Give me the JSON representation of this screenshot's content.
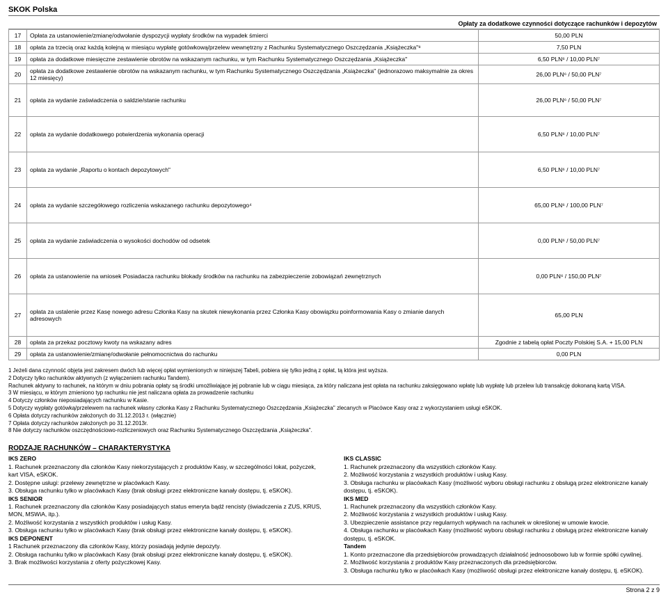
{
  "header": {
    "brand": "SKOK Polska"
  },
  "fees_section": {
    "title": "Opłaty za dodatkowe czynności dotyczące rachunków i depozytów",
    "rows": [
      {
        "num": "17",
        "desc": "Opłata za ustanowienie/zmianę/odwołanie dyspozycji wypłaty środków na wypadek śmierci",
        "val": "50,00 PLN"
      },
      {
        "num": "18",
        "desc": "opłata za trzecią oraz każdą kolejną w miesiącu wypłatę gotówkową/przelew wewnętrzny z Rachunku Systematycznego Oszczędzania „Książeczka\"⁸",
        "val": "7,50 PLN"
      },
      {
        "num": "19",
        "desc": "opłata za dodatkowe miesięczne zestawienie obrotów na wskazanym rachunku, w tym Rachunku Systematycznego Oszczędzania „Książeczka\"",
        "val": "6,50 PLN⁶ / 10,00 PLN⁷"
      },
      {
        "num": "20",
        "desc": "opłata za dodatkowe zestawienie obrotów na wskazanym rachunku, w tym Rachunku Systematycznego Oszczędzania „Książeczka\" (jednorazowo maksymalnie za okres 12 miesięcy)",
        "val": "26,00 PLN⁶ / 50,00 PLN⁷"
      },
      {
        "num": "21",
        "desc": "opłata za wydanie zaświadczenia o saldzie/stanie rachunku",
        "val": "26,00 PLN⁶ / 50,00 PLN⁷"
      },
      {
        "num": "22",
        "desc": "opłata za wydanie dodatkowego potwierdzenia wykonania operacji",
        "val": "6,50 PLN⁶ / 10,00 PLN⁷"
      },
      {
        "num": "23",
        "desc": "opłata za wydanie „Raportu o kontach depozytowych\"",
        "val": "6,50 PLN⁶ / 10,00 PLN⁷"
      },
      {
        "num": "24",
        "desc": "opłata za wydanie szczegółowego rozliczenia wskazanego rachunku depozytowego⁴",
        "val": "65,00 PLN⁶ / 100,00 PLN⁷"
      },
      {
        "num": "25",
        "desc": "opłata za wydanie zaświadczenia o wysokości dochodów od odsetek",
        "val": "0,00 PLN⁶ / 50,00 PLN⁷"
      },
      {
        "num": "26",
        "desc": "opłata za ustanowienie na wniosek Posiadacza rachunku blokady środków na rachunku na zabezpieczenie zobowiązań zewnętrznych",
        "val": "0,00 PLN⁶ / 150,00 PLN⁷"
      },
      {
        "num": "27",
        "desc": "opłata za ustalenie przez Kasę nowego adresu Członka Kasy na skutek niewykonania przez Członka Kasy obowiązku poinformowania Kasy o zmianie danych adresowych",
        "val": "65,00 PLN"
      },
      {
        "num": "28",
        "desc": "opłata za przekaz pocztowy kwoty na wskazany adres",
        "val": "Zgodnie z tabelą opłat Poczty Polskiej S.A. + 15,00 PLN"
      },
      {
        "num": "29",
        "desc": "opłata za ustanowienie/zmianę/odwołanie pełnomocnictwa do rachunku",
        "val": "0,00 PLN"
      }
    ]
  },
  "footnotes": [
    "1 Jeżeli dana czynność objęta jest zakresem dwóch lub więcej opłat wymienionych w niniejszej Tabeli, pobiera się tylko jedną z opłat, tą  która jest wyższa.",
    "2 Dotyczy tylko rachunków aktywnych (z wyłączeniem rachunku Tandem).",
    "Rachunek aktywny to rachunek, na którym w dniu pobrania opłaty są środki umożliwiające jej pobranie lub w ciągu miesiąca, za który naliczana jest opłata na rachunku zaksięgowano wpłatę lub wypłatę lub przelew lub transakcję dokonaną kartą VISA.",
    "3 W miesiącu, w którym zmieniono typ rachunku nie jest naliczana opłata za prowadzenie rachunku",
    "4 Dotyczy członków nieposiadających rachunku w Kasie.",
    "5 Dotyczy wypłaty gotówką/przelewem na rachunek własny członka Kasy z Rachunku Systematycznego Oszczędzania „Książeczka\" zlecanych w Placówce Kasy oraz z wykorzystaniem usługi eSKOK.",
    "6 Opłata dotyczy rachunków założonych do 31.12.2013 r. (włącznie)",
    "7 Opłata dotyczy rachunków założonych po 31.12.2013r.",
    "8 Nie dotyczy rachunków oszczędnościowo-rozliczeniowych oraz Rachunku Systematycznego Oszczędzania „Książeczka\"."
  ],
  "characteristics": {
    "title": "RODZAJE RACHUNKÓW – CHARAKTERYSTYKA",
    "left": [
      {
        "sub": "IKS ZERO"
      },
      {
        "line": "1. Rachunek  przeznaczony  dla członków Kasy niekorzystających z produktów  Kasy, w szczególności lokat, pożyczek, kart VISA, eSKOK."
      },
      {
        "line": "2. Dostępne usługi: przelewy zewnętrzne w placówkach Kasy."
      },
      {
        "line": "3. Obsługa rachunku tylko w placówkach Kasy (brak obsługi przez elektroniczne kanały dostępu, tj. eSKOK)."
      },
      {
        "sub": "IKS SENIOR"
      },
      {
        "line": "1. Rachunek przeznaczony dla członków Kasy posiadających status emeryta bądź rencisty (świadczenia z ZUS, KRUS, MON, MSWiA, itp.)."
      },
      {
        "line": "2. Możliwość korzystania z wszystkich produktów i usług Kasy."
      },
      {
        "line": "3. Obsługa rachunku tylko w placówkach Kasy (brak obsługi przez elektroniczne kanały dostępu, tj. eSKOK)."
      },
      {
        "sub": "IKS DEPONENT"
      },
      {
        "line": "1 Rachunek przeznaczony  dla członków Kasy, którzy posiadają jedynie depozyty."
      },
      {
        "line": "2. Obsługa rachunku tylko w placówkach Kasy (brak obsługi przez elektroniczne kanały dostępu, tj. eSKOK)."
      },
      {
        "line": "3. Brak możliwości korzystania z oferty pożyczkowej Kasy."
      }
    ],
    "right": [
      {
        "sub": "IKS CLASSIC"
      },
      {
        "line": "1. Rachunek  przeznaczony dla wszystkich członków Kasy."
      },
      {
        "line": "2. Możliwość korzystania z wszystkich produktów i usług Kasy."
      },
      {
        "line": "3. Obsługa rachunku w placówkach Kasy (możliwość wyboru obsługi rachunku z obsługą przez elektroniczne kanały dostępu, tj. eSKOK)."
      },
      {
        "sub": "IKS MED"
      },
      {
        "line": "1. Rachunek przeznaczony  dla wszystkich członków Kasy."
      },
      {
        "line": "2. Możliwość korzystania z wszystkich produktów i usług Kasy."
      },
      {
        "line": "3.  Ubezpieczenie assistance przy regularnych wpływach na rachunek  w określonej w umowie kwocie."
      },
      {
        "line": "4. Obsługa rachunku w placówkach Kasy (możliwość wyboru obsługi rachunku z obsługą przez elektroniczne kanały dostępu, tj. eSKOK."
      },
      {
        "sub": "Tandem"
      },
      {
        "line": "1. Konto przeznaczone dla przedsiębiorców prowadzących działalność jednoosobowo lub w formie spółki cywilnej."
      },
      {
        "line": "2. Możliwość korzystania z produktów Kasy przeznaczonych dla przedsiębiorców."
      },
      {
        "line": "3. Obsługa rachunku tylko w placówkach Kasy (możliwość obsługi przez elektroniczne kanały dostępu, tj. eSKOK)."
      }
    ]
  },
  "footer": {
    "page": "Strona 2 z 9"
  }
}
